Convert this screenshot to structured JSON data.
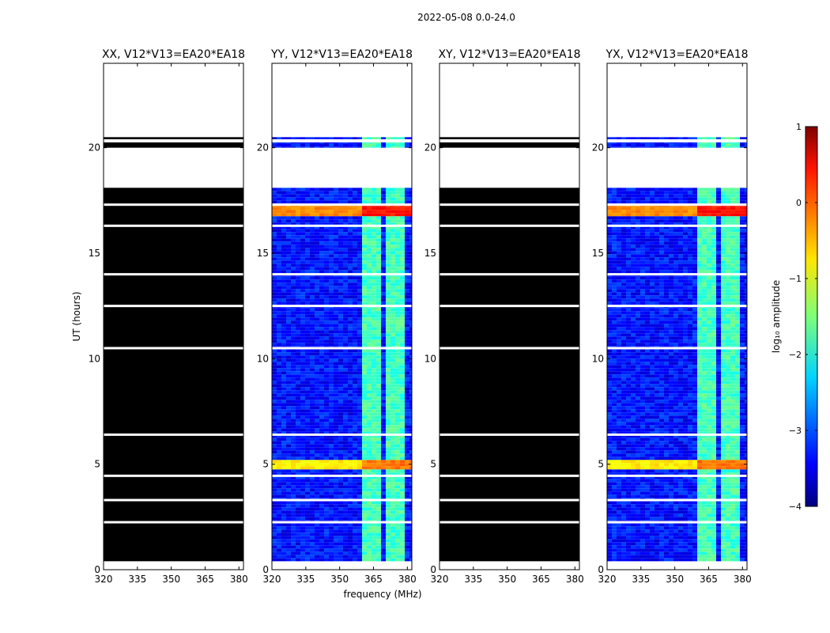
{
  "suptitle": "2022-05-08 0.0-24.0",
  "chart_data": [
    {
      "type": "heatmap",
      "title": "XX, V12*V13=EA20*EA18",
      "polarization": "XX",
      "xlabel": "",
      "ylabel": "UT (hours)",
      "xlim": [
        320,
        382
      ],
      "ylim": [
        0,
        24
      ],
      "xticks": [
        "320",
        "335",
        "350",
        "365",
        "380"
      ],
      "yticks": [
        "0",
        "5",
        "10",
        "15",
        "20"
      ],
      "fill": "black",
      "data_span_ut": [
        0.4,
        20.5
      ],
      "gap_bands_ut": [
        [
          18.1,
          20.0
        ],
        [
          20.25,
          20.4
        ]
      ],
      "flag_lines_ut": [
        2.25,
        3.3,
        4.45,
        6.4,
        10.5,
        12.5,
        14.0,
        16.3,
        17.3
      ]
    },
    {
      "type": "heatmap",
      "title": "YY, V12*V13=EA20*EA18",
      "polarization": "YY",
      "xlabel": "frequency (MHz)",
      "ylabel": "",
      "xlim": [
        320,
        382
      ],
      "ylim": [
        0,
        24
      ],
      "xticks": [
        "320",
        "335",
        "350",
        "365",
        "380"
      ],
      "yticks": [
        "0",
        "5",
        "10",
        "15",
        "20"
      ],
      "fill": "spectrum",
      "background_log_amp": -3.3,
      "rfi_band_mhz": [
        359.5,
        380.5
      ],
      "rfi_log_amp": -1.8,
      "bright_rows": [
        {
          "ut": [
            16.7,
            17.3
          ],
          "log_amp": 0.3
        },
        {
          "ut": [
            4.8,
            5.2
          ],
          "log_amp": -0.2
        }
      ],
      "data_span_ut": [
        0.4,
        20.5
      ],
      "gap_bands_ut": [
        [
          18.1,
          20.0
        ],
        [
          20.25,
          20.4
        ]
      ],
      "flag_lines_ut": [
        2.25,
        3.3,
        4.45,
        6.4,
        10.5,
        12.5,
        14.0,
        16.3,
        17.3
      ]
    },
    {
      "type": "heatmap",
      "title": "XY, V12*V13=EA20*EA18",
      "polarization": "XY",
      "xlabel": "",
      "ylabel": "",
      "xlim": [
        320,
        382
      ],
      "ylim": [
        0,
        24
      ],
      "xticks": [
        "320",
        "335",
        "350",
        "365",
        "380"
      ],
      "yticks": [
        "0",
        "5",
        "10",
        "15",
        "20"
      ],
      "fill": "black",
      "data_span_ut": [
        0.4,
        20.5
      ],
      "gap_bands_ut": [
        [
          18.1,
          20.0
        ],
        [
          20.25,
          20.4
        ]
      ],
      "flag_lines_ut": [
        2.25,
        3.3,
        4.45,
        6.4,
        10.5,
        12.5,
        14.0,
        16.3,
        17.3
      ]
    },
    {
      "type": "heatmap",
      "title": "YX, V12*V13=EA20*EA18",
      "polarization": "YX",
      "xlabel": "",
      "ylabel": "",
      "xlim": [
        320,
        382
      ],
      "ylim": [
        0,
        24
      ],
      "xticks": [
        "320",
        "335",
        "350",
        "365",
        "380"
      ],
      "yticks": [
        "0",
        "5",
        "10",
        "15",
        "20"
      ],
      "fill": "spectrum",
      "background_log_amp": -3.3,
      "rfi_band_mhz": [
        359.5,
        380.5
      ],
      "rfi_log_amp": -1.8,
      "bright_rows": [
        {
          "ut": [
            16.7,
            17.3
          ],
          "log_amp": 0.3
        },
        {
          "ut": [
            4.8,
            5.2
          ],
          "log_amp": -0.2
        }
      ],
      "data_span_ut": [
        0.4,
        20.5
      ],
      "gap_bands_ut": [
        [
          18.1,
          20.0
        ],
        [
          20.25,
          20.4
        ]
      ],
      "flag_lines_ut": [
        2.25,
        3.3,
        4.45,
        6.4,
        10.5,
        12.5,
        14.0,
        16.3,
        17.3
      ]
    }
  ],
  "colorbar": {
    "label": "log₁₀ amplitude",
    "range": [
      -4,
      1
    ],
    "ticks": [
      "1",
      "0",
      "−1",
      "−2",
      "−3",
      "−4"
    ],
    "colormap": "jet"
  }
}
